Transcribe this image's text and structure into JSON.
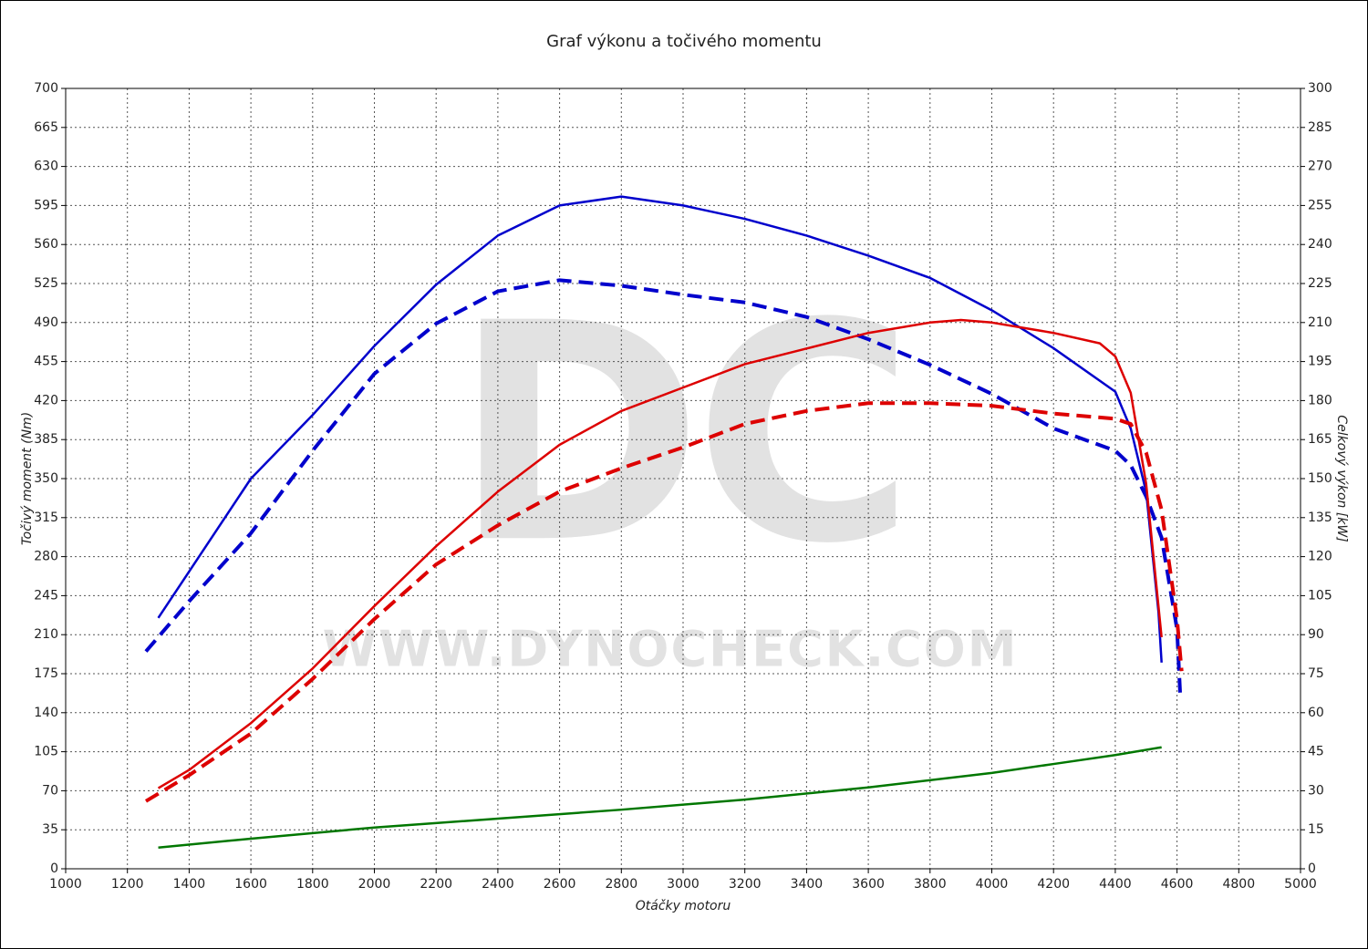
{
  "chart_data": {
    "type": "line",
    "title": "Graf výkonu a točivého momentu",
    "xlabel": "Otáčky motoru",
    "ylabel": "Točivý moment (Nm)",
    "y2label": "Celkový výkon [kW]",
    "watermark": "DC",
    "watermark_url": "WWW.DYNOCHECK.COM",
    "xlim": [
      1000,
      5000
    ],
    "xticks": [
      1000,
      1200,
      1400,
      1600,
      1800,
      2000,
      2200,
      2400,
      2600,
      2800,
      3000,
      3200,
      3400,
      3600,
      3800,
      4000,
      4200,
      4400,
      4600,
      4800,
      5000
    ],
    "ylim": [
      0,
      700
    ],
    "yticks": [
      0,
      35,
      70,
      105,
      140,
      175,
      210,
      245,
      280,
      315,
      350,
      385,
      420,
      455,
      490,
      525,
      560,
      595,
      630,
      665,
      700
    ],
    "y2lim": [
      0,
      300
    ],
    "y2ticks": [
      0,
      15,
      30,
      45,
      60,
      75,
      90,
      105,
      120,
      135,
      150,
      165,
      180,
      195,
      210,
      225,
      240,
      255,
      270,
      285,
      300
    ],
    "grid": true,
    "series": [
      {
        "color": "#0000cc",
        "dashed": false,
        "x": [
          1300,
          1600,
          1800,
          2000,
          2200,
          2400,
          2600,
          2800,
          3000,
          3200,
          3400,
          3600,
          3800,
          4000,
          4200,
          4400,
          4450,
          4500,
          4540,
          4550
        ],
        "values": [
          225,
          350,
          407,
          469,
          524,
          568,
          595,
          603,
          595,
          583,
          568,
          550,
          530,
          501,
          467,
          428,
          395,
          338,
          230,
          185
        ]
      },
      {
        "color": "#0000cc",
        "dashed": true,
        "x": [
          1260,
          1400,
          1600,
          1800,
          2000,
          2200,
          2400,
          2600,
          2800,
          3000,
          3200,
          3400,
          3600,
          3800,
          4000,
          4200,
          4400,
          4450,
          4500,
          4550,
          4600,
          4610
        ],
        "values": [
          195,
          240,
          301,
          375,
          444,
          489,
          518,
          528,
          523,
          515,
          508,
          495,
          475,
          452,
          426,
          395,
          375,
          362,
          334,
          297,
          215,
          158
        ]
      },
      {
        "color": "#dd0000",
        "dashed": false,
        "axis": "y2",
        "x": [
          1300,
          1400,
          1600,
          1800,
          2000,
          2200,
          2400,
          2600,
          2800,
          3000,
          3200,
          3400,
          3600,
          3800,
          3900,
          4000,
          4200,
          4350,
          4400,
          4450,
          4500,
          4550
        ],
        "values": [
          31,
          38,
          56,
          77,
          101,
          124,
          145,
          163,
          176,
          185,
          194,
          200,
          206,
          210,
          211,
          210,
          206,
          202,
          197,
          183,
          148,
          89
        ]
      },
      {
        "color": "#dd0000",
        "dashed": true,
        "axis": "y2",
        "x": [
          1260,
          1400,
          1600,
          1800,
          2000,
          2200,
          2400,
          2600,
          2800,
          3000,
          3200,
          3400,
          3600,
          3800,
          4000,
          4200,
          4400,
          4450,
          4500,
          4550,
          4600,
          4615
        ],
        "values": [
          26,
          36,
          52,
          73,
          96,
          117,
          132,
          145,
          154,
          162,
          171,
          176,
          179,
          179,
          178,
          175,
          173,
          171,
          160,
          138,
          96,
          76
        ]
      },
      {
        "color": "#007700",
        "dashed": false,
        "x": [
          1300,
          1600,
          2000,
          2400,
          2800,
          3200,
          3600,
          4000,
          4200,
          4400,
          4550
        ],
        "values": [
          19,
          27,
          37,
          45,
          53,
          62,
          73,
          86,
          94,
          102,
          109
        ]
      }
    ]
  }
}
